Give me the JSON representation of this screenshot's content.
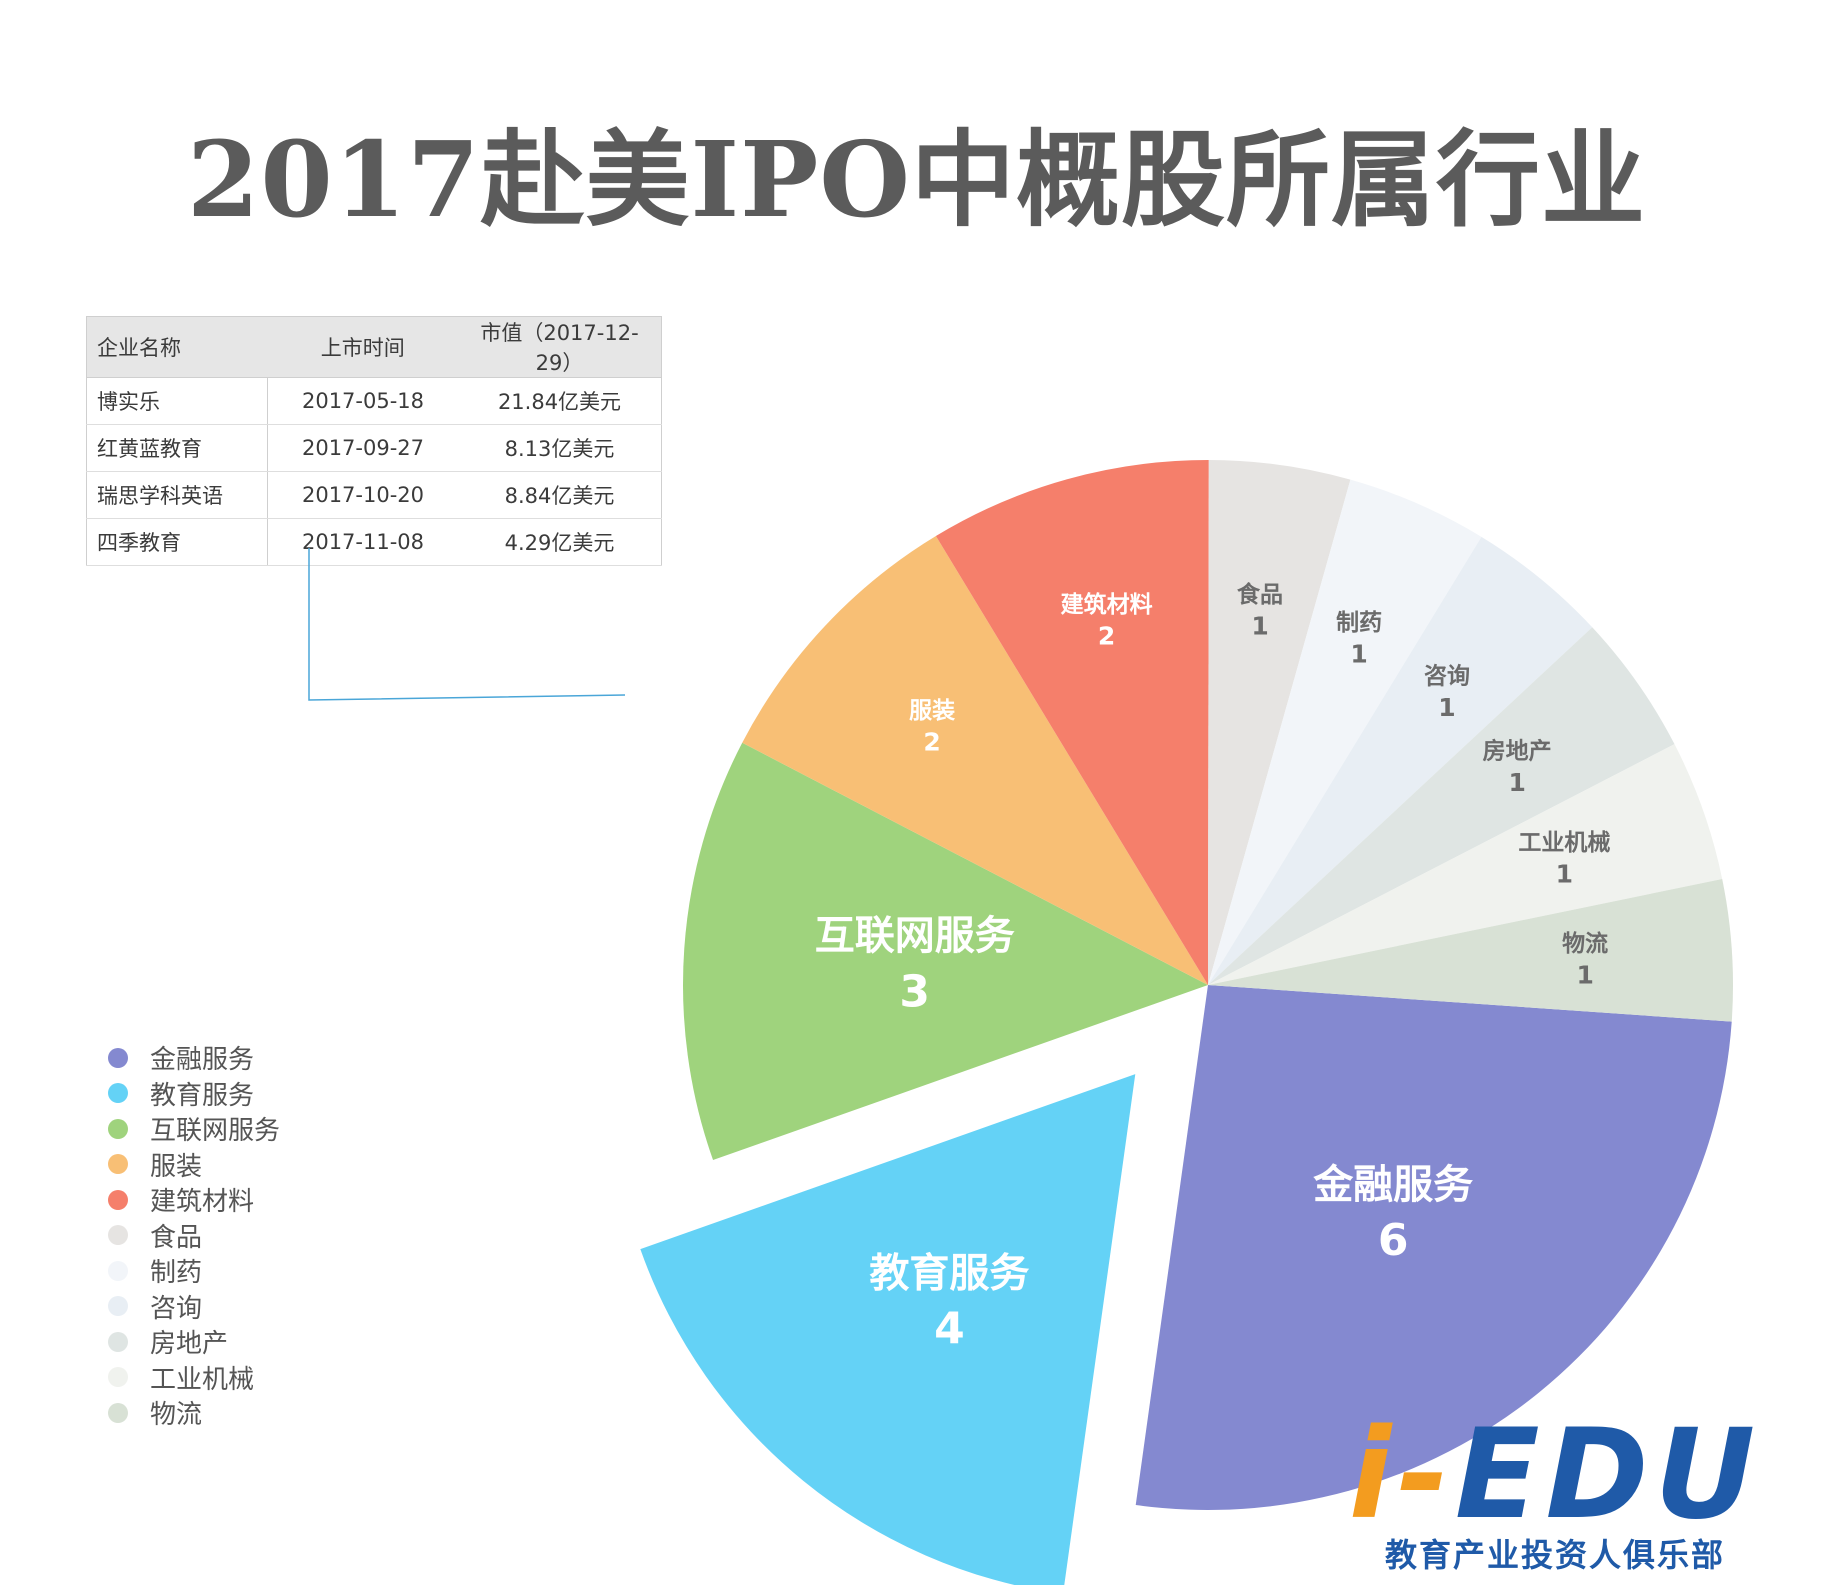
{
  "title": "2017赴美IPO中概股所属行业",
  "table": {
    "headers": [
      "企业名称",
      "上市时间",
      "市值（2017-12-29）"
    ],
    "rows": [
      [
        "博实乐",
        "2017-05-18",
        "21.84亿美元"
      ],
      [
        "红黄蓝教育",
        "2017-09-27",
        "8.13亿美元"
      ],
      [
        "瑞思学科英语",
        "2017-10-20",
        "8.84亿美元"
      ],
      [
        "四季教育",
        "2017-11-08",
        "4.29亿美元"
      ]
    ]
  },
  "logo": {
    "mark_prefix": "i-",
    "mark_main": "EDU",
    "subtitle": "教育产业投资人俱乐部",
    "colors": {
      "blue": "#1f5aa8",
      "orange": "#f39c1f"
    }
  },
  "chart_data": {
    "type": "pie",
    "categories": [
      "金融服务",
      "教育服务",
      "互联网服务",
      "服装",
      "建筑材料",
      "食品",
      "制药",
      "咨询",
      "房地产",
      "工业机械",
      "物流"
    ],
    "values": [
      6,
      4,
      3,
      2,
      2,
      1,
      1,
      1,
      1,
      1,
      1
    ],
    "colors": [
      "#8489d0",
      "#64d2f6",
      "#9fd37d",
      "#f8bf75",
      "#f57f6b",
      "#e6e4e2",
      "#f2f5f9",
      "#e8eef4",
      "#dfe5e3",
      "#f0f2ee",
      "#d8e1d5"
    ],
    "exploded": [
      "教育服务"
    ],
    "legend_position": "bottom-left",
    "slice_labels": [
      "金融服务",
      "教育服务",
      "互联网服务",
      "服装",
      "建筑材料",
      "食品",
      "制药",
      "咨询",
      "房地产",
      "工业机械",
      "物流"
    ]
  }
}
